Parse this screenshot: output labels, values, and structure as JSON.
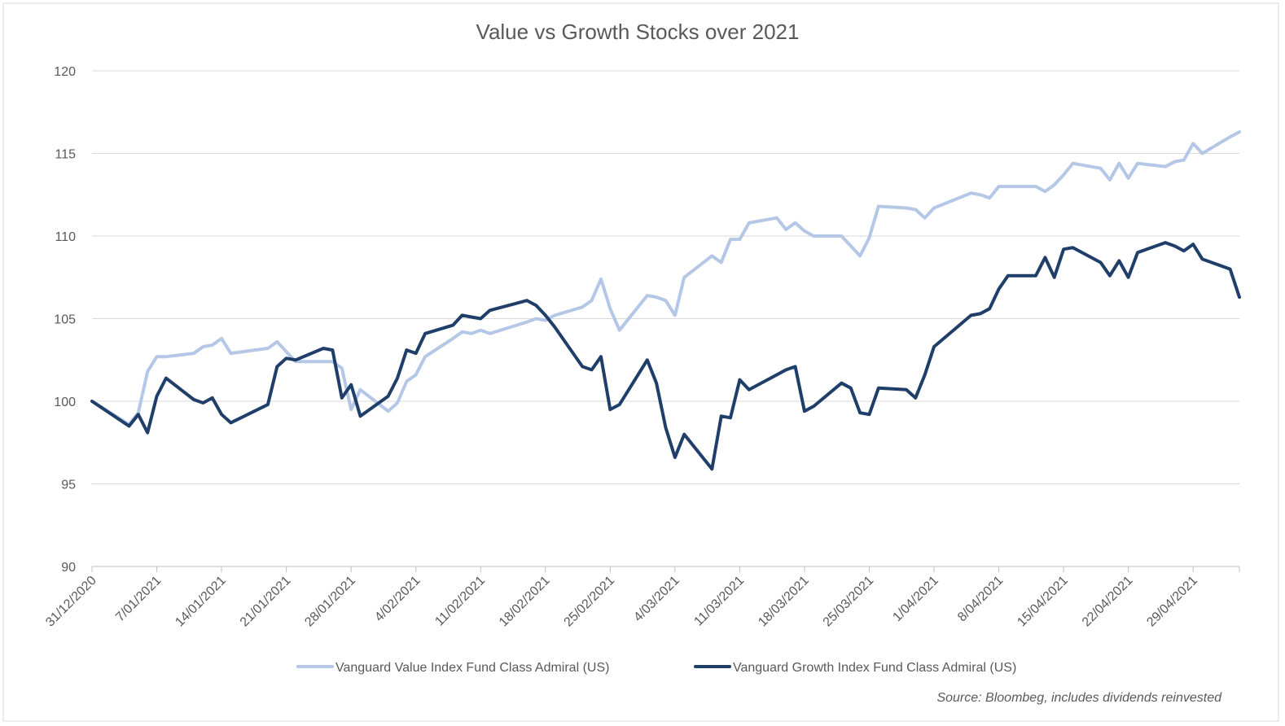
{
  "chart_data": {
    "type": "line",
    "title": "Value vs Growth Stocks over 2021",
    "xlabel": "",
    "ylabel": "",
    "ylim": [
      90,
      120
    ],
    "yticks": [
      "90",
      "95",
      "100",
      "105",
      "110",
      "115",
      "120"
    ],
    "xlim": [
      "2020-12-31",
      "2021-05-04"
    ],
    "xticks": [
      {
        "date": "2020-12-31",
        "label": "31/12/2020"
      },
      {
        "date": "2021-01-07",
        "label": "7/01/2021"
      },
      {
        "date": "2021-01-14",
        "label": "14/01/2021"
      },
      {
        "date": "2021-01-21",
        "label": "21/01/2021"
      },
      {
        "date": "2021-01-28",
        "label": "28/01/2021"
      },
      {
        "date": "2021-02-04",
        "label": "4/02/2021"
      },
      {
        "date": "2021-02-11",
        "label": "11/02/2021"
      },
      {
        "date": "2021-02-18",
        "label": "18/02/2021"
      },
      {
        "date": "2021-02-25",
        "label": "25/02/2021"
      },
      {
        "date": "2021-03-04",
        "label": "4/03/2021"
      },
      {
        "date": "2021-03-11",
        "label": "11/03/2021"
      },
      {
        "date": "2021-03-18",
        "label": "18/03/2021"
      },
      {
        "date": "2021-03-25",
        "label": "25/03/2021"
      },
      {
        "date": "2021-04-01",
        "label": "1/04/2021"
      },
      {
        "date": "2021-04-08",
        "label": "8/04/2021"
      },
      {
        "date": "2021-04-15",
        "label": "15/04/2021"
      },
      {
        "date": "2021-04-22",
        "label": "22/04/2021"
      },
      {
        "date": "2021-04-29",
        "label": "29/04/2021"
      }
    ],
    "grid": true,
    "legend_position": "bottom",
    "annotation": "Source: Bloombeg, includes dividends reinvested",
    "series": [
      {
        "name": "Vanguard Value Index Fund Class Admiral (US)",
        "color": "#b4c7e7",
        "points": [
          [
            "2020-12-31",
            100.0
          ],
          [
            "2021-01-04",
            98.6
          ],
          [
            "2021-01-05",
            99.3
          ],
          [
            "2021-01-06",
            101.8
          ],
          [
            "2021-01-07",
            102.7
          ],
          [
            "2021-01-08",
            102.7
          ],
          [
            "2021-01-11",
            102.9
          ],
          [
            "2021-01-12",
            103.3
          ],
          [
            "2021-01-13",
            103.4
          ],
          [
            "2021-01-14",
            103.8
          ],
          [
            "2021-01-15",
            102.9
          ],
          [
            "2021-01-19",
            103.2
          ],
          [
            "2021-01-20",
            103.6
          ],
          [
            "2021-01-21",
            103.0
          ],
          [
            "2021-01-22",
            102.4
          ],
          [
            "2021-01-25",
            102.4
          ],
          [
            "2021-01-26",
            102.4
          ],
          [
            "2021-01-27",
            102.0
          ],
          [
            "2021-01-28",
            99.5
          ],
          [
            "2021-01-29",
            100.7
          ],
          [
            "2021-02-01",
            99.4
          ],
          [
            "2021-02-02",
            99.9
          ],
          [
            "2021-02-03",
            101.2
          ],
          [
            "2021-02-04",
            101.6
          ],
          [
            "2021-02-05",
            102.7
          ],
          [
            "2021-02-08",
            103.8
          ],
          [
            "2021-02-09",
            104.2
          ],
          [
            "2021-02-10",
            104.1
          ],
          [
            "2021-02-11",
            104.3
          ],
          [
            "2021-02-12",
            104.1
          ],
          [
            "2021-02-16",
            104.8
          ],
          [
            "2021-02-17",
            105.0
          ],
          [
            "2021-02-18",
            104.9
          ],
          [
            "2021-02-19",
            105.2
          ],
          [
            "2021-02-22",
            105.7
          ],
          [
            "2021-02-23",
            106.1
          ],
          [
            "2021-02-24",
            107.4
          ],
          [
            "2021-02-25",
            105.6
          ],
          [
            "2021-02-26",
            104.3
          ],
          [
            "2021-03-01",
            106.4
          ],
          [
            "2021-03-02",
            106.3
          ],
          [
            "2021-03-03",
            106.1
          ],
          [
            "2021-03-04",
            105.2
          ],
          [
            "2021-03-05",
            107.5
          ],
          [
            "2021-03-08",
            108.8
          ],
          [
            "2021-03-09",
            108.4
          ],
          [
            "2021-03-10",
            109.8
          ],
          [
            "2021-03-11",
            109.8
          ],
          [
            "2021-03-12",
            110.8
          ],
          [
            "2021-03-15",
            111.1
          ],
          [
            "2021-03-16",
            110.4
          ],
          [
            "2021-03-17",
            110.8
          ],
          [
            "2021-03-18",
            110.3
          ],
          [
            "2021-03-19",
            110.0
          ],
          [
            "2021-03-22",
            110.0
          ],
          [
            "2021-03-23",
            109.4
          ],
          [
            "2021-03-24",
            108.8
          ],
          [
            "2021-03-25",
            109.9
          ],
          [
            "2021-03-26",
            111.8
          ],
          [
            "2021-03-29",
            111.7
          ],
          [
            "2021-03-30",
            111.6
          ],
          [
            "2021-03-31",
            111.1
          ],
          [
            "2021-04-01",
            111.7
          ],
          [
            "2021-04-05",
            112.6
          ],
          [
            "2021-04-06",
            112.5
          ],
          [
            "2021-04-07",
            112.3
          ],
          [
            "2021-04-08",
            113.0
          ],
          [
            "2021-04-09",
            113.0
          ],
          [
            "2021-04-12",
            113.0
          ],
          [
            "2021-04-13",
            112.7
          ],
          [
            "2021-04-14",
            113.1
          ],
          [
            "2021-04-15",
            113.7
          ],
          [
            "2021-04-16",
            114.4
          ],
          [
            "2021-04-19",
            114.1
          ],
          [
            "2021-04-20",
            113.4
          ],
          [
            "2021-04-21",
            114.4
          ],
          [
            "2021-04-22",
            113.5
          ],
          [
            "2021-04-23",
            114.4
          ],
          [
            "2021-04-26",
            114.2
          ],
          [
            "2021-04-27",
            114.5
          ],
          [
            "2021-04-28",
            114.6
          ],
          [
            "2021-04-29",
            115.6
          ],
          [
            "2021-04-30",
            115.0
          ],
          [
            "2021-05-03",
            116.0
          ],
          [
            "2021-05-04",
            116.3
          ]
        ]
      },
      {
        "name": "Vanguard Growth Index Fund Class Admiral (US)",
        "color": "#1f3e6a",
        "points": [
          [
            "2020-12-31",
            100.0
          ],
          [
            "2021-01-04",
            98.5
          ],
          [
            "2021-01-05",
            99.2
          ],
          [
            "2021-01-06",
            98.1
          ],
          [
            "2021-01-07",
            100.3
          ],
          [
            "2021-01-08",
            101.4
          ],
          [
            "2021-01-11",
            100.1
          ],
          [
            "2021-01-12",
            99.9
          ],
          [
            "2021-01-13",
            100.2
          ],
          [
            "2021-01-14",
            99.2
          ],
          [
            "2021-01-15",
            98.7
          ],
          [
            "2021-01-19",
            99.8
          ],
          [
            "2021-01-20",
            102.1
          ],
          [
            "2021-01-21",
            102.6
          ],
          [
            "2021-01-22",
            102.5
          ],
          [
            "2021-01-25",
            103.2
          ],
          [
            "2021-01-26",
            103.1
          ],
          [
            "2021-01-27",
            100.2
          ],
          [
            "2021-01-28",
            101.0
          ],
          [
            "2021-01-29",
            99.1
          ],
          [
            "2021-02-01",
            100.3
          ],
          [
            "2021-02-02",
            101.4
          ],
          [
            "2021-02-03",
            103.1
          ],
          [
            "2021-02-04",
            102.9
          ],
          [
            "2021-02-05",
            104.1
          ],
          [
            "2021-02-08",
            104.6
          ],
          [
            "2021-02-09",
            105.2
          ],
          [
            "2021-02-10",
            105.1
          ],
          [
            "2021-02-11",
            105.0
          ],
          [
            "2021-02-12",
            105.5
          ],
          [
            "2021-02-16",
            106.1
          ],
          [
            "2021-02-17",
            105.8
          ],
          [
            "2021-02-18",
            105.2
          ],
          [
            "2021-02-19",
            104.5
          ],
          [
            "2021-02-22",
            102.1
          ],
          [
            "2021-02-23",
            101.9
          ],
          [
            "2021-02-24",
            102.7
          ],
          [
            "2021-02-25",
            99.5
          ],
          [
            "2021-02-26",
            99.8
          ],
          [
            "2021-03-01",
            102.5
          ],
          [
            "2021-03-02",
            101.1
          ],
          [
            "2021-03-03",
            98.4
          ],
          [
            "2021-03-04",
            96.6
          ],
          [
            "2021-03-05",
            98.0
          ],
          [
            "2021-03-08",
            95.9
          ],
          [
            "2021-03-09",
            99.1
          ],
          [
            "2021-03-10",
            99.0
          ],
          [
            "2021-03-11",
            101.3
          ],
          [
            "2021-03-12",
            100.7
          ],
          [
            "2021-03-15",
            101.6
          ],
          [
            "2021-03-16",
            101.9
          ],
          [
            "2021-03-17",
            102.1
          ],
          [
            "2021-03-18",
            99.4
          ],
          [
            "2021-03-19",
            99.7
          ],
          [
            "2021-03-22",
            101.1
          ],
          [
            "2021-03-23",
            100.8
          ],
          [
            "2021-03-24",
            99.3
          ],
          [
            "2021-03-25",
            99.2
          ],
          [
            "2021-03-26",
            100.8
          ],
          [
            "2021-03-29",
            100.7
          ],
          [
            "2021-03-30",
            100.2
          ],
          [
            "2021-03-31",
            101.6
          ],
          [
            "2021-04-01",
            103.3
          ],
          [
            "2021-04-05",
            105.2
          ],
          [
            "2021-04-06",
            105.3
          ],
          [
            "2021-04-07",
            105.6
          ],
          [
            "2021-04-08",
            106.8
          ],
          [
            "2021-04-09",
            107.6
          ],
          [
            "2021-04-12",
            107.6
          ],
          [
            "2021-04-13",
            108.7
          ],
          [
            "2021-04-14",
            107.5
          ],
          [
            "2021-04-15",
            109.2
          ],
          [
            "2021-04-16",
            109.3
          ],
          [
            "2021-04-19",
            108.4
          ],
          [
            "2021-04-20",
            107.6
          ],
          [
            "2021-04-21",
            108.5
          ],
          [
            "2021-04-22",
            107.5
          ],
          [
            "2021-04-23",
            109.0
          ],
          [
            "2021-04-26",
            109.6
          ],
          [
            "2021-04-27",
            109.4
          ],
          [
            "2021-04-28",
            109.1
          ],
          [
            "2021-04-29",
            109.5
          ],
          [
            "2021-04-30",
            108.6
          ],
          [
            "2021-05-03",
            108.0
          ],
          [
            "2021-05-04",
            106.3
          ]
        ]
      }
    ]
  }
}
